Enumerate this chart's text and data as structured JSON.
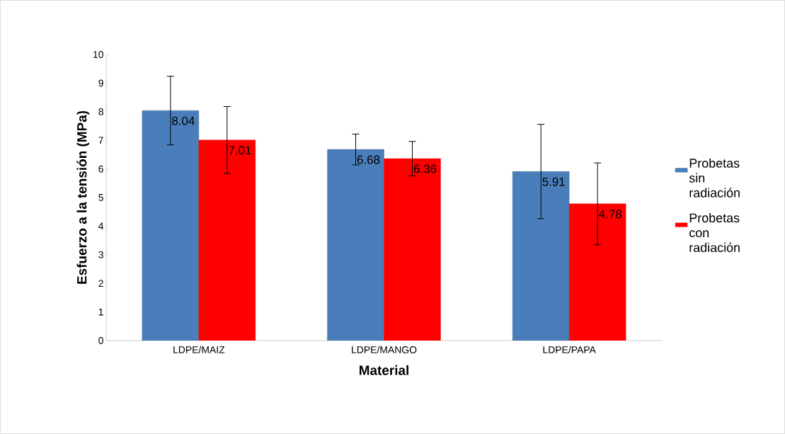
{
  "chart_data": {
    "type": "bar",
    "xlabel": "Material",
    "ylabel": "Esfuerzo a la tensión (MPa)",
    "categories": [
      "LDPE/MAIZ",
      "LDPE/MANGO",
      "LDPE/PAPA"
    ],
    "series": [
      {
        "name": "Probetas sin radiación",
        "color": "#4a7ebb",
        "values": [
          8.04,
          6.68,
          5.91
        ],
        "errors": [
          1.2,
          0.54,
          1.65
        ]
      },
      {
        "name": "Probetas con radiación",
        "color": "#ff0000",
        "values": [
          7.01,
          6.36,
          4.78
        ],
        "errors": [
          1.17,
          0.6,
          1.43
        ]
      }
    ],
    "ylim": [
      0,
      10
    ],
    "yticks": [
      0,
      1,
      2,
      3,
      4,
      5,
      6,
      7,
      8,
      9,
      10
    ],
    "data_labels": true,
    "legend": "right",
    "grid": false
  }
}
